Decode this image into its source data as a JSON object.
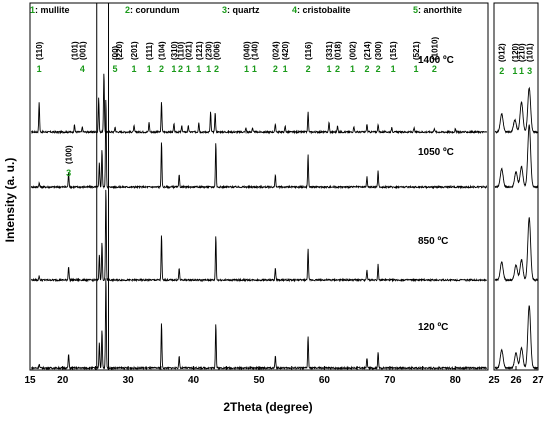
{
  "chart_data": {
    "type": "line",
    "xlabel": "2Theta (degree)",
    "ylabel": "Intensity (a. u.)",
    "main_panel": {
      "xlim": [
        15,
        85
      ],
      "xticks": [
        15,
        20,
        25,
        30,
        35,
        40,
        45,
        50,
        55,
        60,
        65,
        70,
        75,
        80,
        85
      ]
    },
    "inset_panel": {
      "xlim": [
        25,
        27
      ],
      "xticks": [
        25,
        26,
        27
      ]
    },
    "highlight_band": [
      25.2,
      27.0
    ],
    "legend": [
      {
        "num": "1",
        "label": ": mullite"
      },
      {
        "num": "2",
        "label": ": corundum"
      },
      {
        "num": "3",
        "label": ": quartz"
      },
      {
        "num": "4",
        "label": ": cristobalite"
      },
      {
        "num": "5",
        "label": ": anorthite"
      }
    ],
    "series": [
      {
        "name": "1400 ºC",
        "peaks": [
          [
            16.4,
            30
          ],
          [
            21.8,
            7
          ],
          [
            23.0,
            5
          ],
          [
            25.5,
            34
          ],
          [
            26.3,
            60
          ],
          [
            28.0,
            5
          ],
          [
            30.9,
            6
          ],
          [
            33.2,
            10
          ],
          [
            35.1,
            30
          ],
          [
            37.0,
            8
          ],
          [
            38.2,
            6
          ],
          [
            39.2,
            6
          ],
          [
            40.8,
            10
          ],
          [
            42.6,
            20
          ],
          [
            43.3,
            20
          ],
          [
            48.0,
            4
          ],
          [
            49.0,
            4
          ],
          [
            52.5,
            8
          ],
          [
            54.0,
            6
          ],
          [
            57.5,
            20
          ],
          [
            60.7,
            10
          ],
          [
            62.0,
            6
          ],
          [
            64.5,
            6
          ],
          [
            66.5,
            8
          ],
          [
            68.2,
            8
          ],
          [
            70.3,
            5
          ],
          [
            73.7,
            4
          ],
          [
            76.8,
            4
          ],
          [
            80.0,
            3
          ]
        ]
      },
      {
        "name": "1050 ºC",
        "peaks": [
          [
            16.4,
            4
          ],
          [
            20.9,
            14
          ],
          [
            25.6,
            24
          ],
          [
            26.0,
            38
          ],
          [
            26.6,
            90
          ],
          [
            35.1,
            45
          ],
          [
            37.8,
            12
          ],
          [
            43.4,
            45
          ],
          [
            52.5,
            12
          ],
          [
            57.5,
            32
          ],
          [
            66.5,
            10
          ],
          [
            68.2,
            16
          ]
        ]
      },
      {
        "name": "850 ºC",
        "peaks": [
          [
            16.4,
            4
          ],
          [
            20.9,
            14
          ],
          [
            25.6,
            26
          ],
          [
            26.0,
            38
          ],
          [
            26.6,
            92
          ],
          [
            35.1,
            45
          ],
          [
            37.8,
            12
          ],
          [
            43.4,
            45
          ],
          [
            52.5,
            12
          ],
          [
            57.5,
            32
          ],
          [
            66.5,
            10
          ],
          [
            68.2,
            16
          ]
        ]
      },
      {
        "name": "120 ºC",
        "peaks": [
          [
            16.4,
            4
          ],
          [
            20.9,
            14
          ],
          [
            25.6,
            26
          ],
          [
            26.0,
            38
          ],
          [
            26.6,
            92
          ],
          [
            35.1,
            45
          ],
          [
            37.8,
            12
          ],
          [
            43.4,
            45
          ],
          [
            52.5,
            12
          ],
          [
            57.5,
            32
          ],
          [
            66.5,
            10
          ],
          [
            68.2,
            16
          ]
        ]
      }
    ],
    "inset_series": [
      {
        "name": "1400 ºC",
        "peaks": [
          [
            25.35,
            18
          ],
          [
            25.95,
            12
          ],
          [
            26.25,
            30
          ],
          [
            26.6,
            44
          ]
        ]
      },
      {
        "name": "1050 ºC",
        "peaks": [
          [
            25.35,
            18
          ],
          [
            26.0,
            15
          ],
          [
            26.25,
            20
          ],
          [
            26.6,
            62
          ]
        ]
      },
      {
        "name": "850 ºC",
        "peaks": [
          [
            25.35,
            18
          ],
          [
            26.0,
            15
          ],
          [
            26.25,
            20
          ],
          [
            26.6,
            62
          ]
        ]
      },
      {
        "name": "120 ºC",
        "peaks": [
          [
            25.35,
            18
          ],
          [
            26.0,
            15
          ],
          [
            26.25,
            20
          ],
          [
            26.6,
            62
          ]
        ]
      }
    ],
    "annotations": [
      {
        "hkl": "(110)",
        "phase": "1",
        "x": 16.4
      },
      {
        "hkl": "(101)",
        "phase": "",
        "x": 21.8
      },
      {
        "hkl": "(001)",
        "phase": "4",
        "x": 23.0
      },
      {
        "hkl": "(00)",
        "phase": "5",
        "x": 28.0
      },
      {
        "hkl": "(220)",
        "phase": "",
        "x": 28.6
      },
      {
        "hkl": "(201)",
        "phase": "1",
        "x": 30.9
      },
      {
        "hkl": "(111)",
        "phase": "1",
        "x": 33.2
      },
      {
        "hkl": "(104)",
        "phase": "2",
        "x": 35.1
      },
      {
        "hkl": "(310)",
        "phase": "1",
        "x": 37.0
      },
      {
        "hkl": "(110)",
        "phase": "2",
        "x": 38.0
      },
      {
        "hkl": "(021)",
        "phase": "1",
        "x": 39.2
      },
      {
        "hkl": "(121)",
        "phase": "1",
        "x": 40.8
      },
      {
        "hkl": "(230)",
        "phase": "1",
        "x": 42.3
      },
      {
        "hkl": "(006)",
        "phase": "2",
        "x": 43.5
      },
      {
        "hkl": "(040)",
        "phase": "1",
        "x": 48.1
      },
      {
        "hkl": "(140)",
        "phase": "1",
        "x": 49.3
      },
      {
        "hkl": "(024)",
        "phase": "2",
        "x": 52.5
      },
      {
        "hkl": "(420)",
        "phase": "1",
        "x": 54.0
      },
      {
        "hkl": "(116)",
        "phase": "2",
        "x": 57.5
      },
      {
        "hkl": "(331)",
        "phase": "1",
        "x": 60.7
      },
      {
        "hkl": "(018)",
        "phase": "2",
        "x": 62.0
      },
      {
        "hkl": "(002)",
        "phase": "1",
        "x": 64.3
      },
      {
        "hkl": "(214)",
        "phase": "2",
        "x": 66.5
      },
      {
        "hkl": "(300)",
        "phase": "2",
        "x": 68.2
      },
      {
        "hkl": "(151)",
        "phase": "1",
        "x": 70.5
      },
      {
        "hkl": "(521)",
        "phase": "1",
        "x": 74.0
      },
      {
        "hkl": "(1010)",
        "phase": "2",
        "x": 76.8
      },
      {
        "hkl": "(100)",
        "phase": "3",
        "x": 20.9,
        "series": "1050 ºC"
      }
    ],
    "inset_annotations": [
      {
        "hkl": "(012)",
        "phase": "2",
        "x": 25.35
      },
      {
        "hkl": "(120)",
        "phase": "1",
        "x": 25.95
      },
      {
        "hkl": "(210)",
        "phase": "1",
        "x": 26.25
      },
      {
        "hkl": "(101)",
        "phase": "3",
        "x": 26.62
      }
    ]
  }
}
